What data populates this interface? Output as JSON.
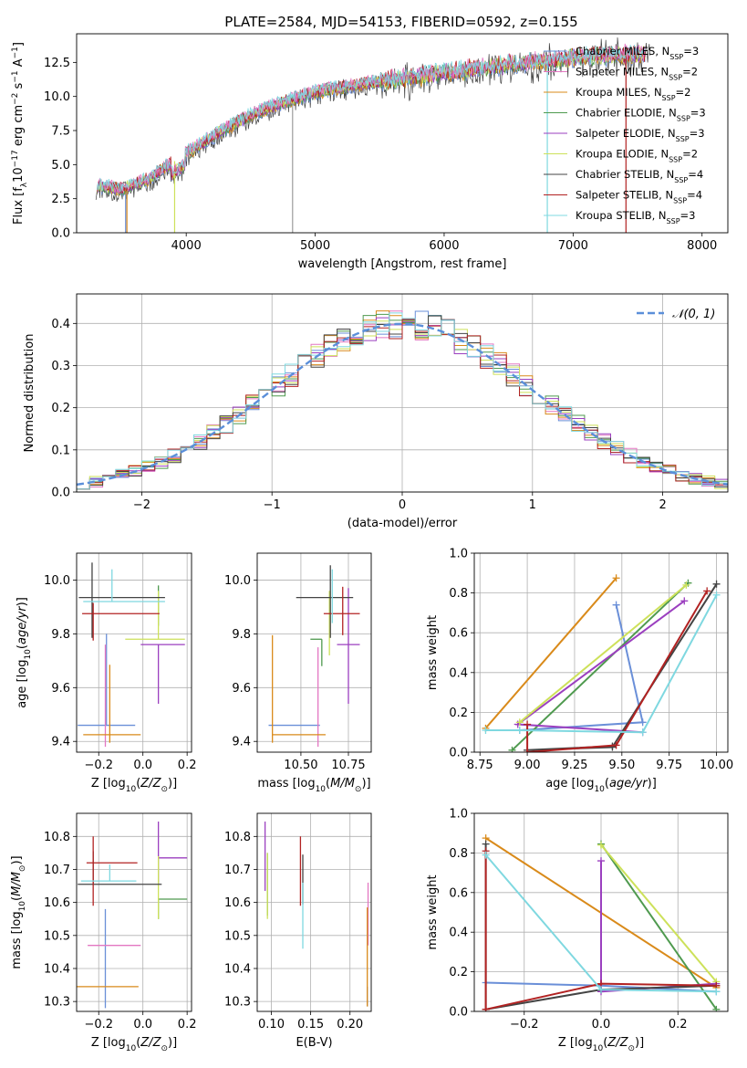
{
  "figure": {
    "title": "PLATE=2584, MJD=54153, FIBERID=0592, z=0.155"
  },
  "models": [
    {
      "name": "Chabrier MILES, N$_{SSP}$=3",
      "label": "Chabrier MILES, N",
      "nssp": "=3",
      "color": "#6a8fd8"
    },
    {
      "name": "Salpeter MILES, N$_{SSP}$=2",
      "label": "Salpeter MILES, N",
      "nssp": "=2",
      "color": "#e377c2"
    },
    {
      "name": "Kroupa MILES, N$_{SSP}$=2",
      "label": "Kroupa MILES, N",
      "nssp": "=2",
      "color": "#d98a1a"
    },
    {
      "name": "Chabrier ELODIE, N$_{SSP}$=3",
      "label": "Chabrier ELODIE, N",
      "nssp": "=3",
      "color": "#4f9a4f"
    },
    {
      "name": "Salpeter ELODIE, N$_{SSP}$=3",
      "label": "Salpeter ELODIE, N",
      "nssp": "=3",
      "color": "#9b3fbf"
    },
    {
      "name": "Kroupa ELODIE, N$_{SSP}$=2",
      "label": "Kroupa ELODIE, N",
      "nssp": "=2",
      "color": "#cde15a"
    },
    {
      "name": "Chabrier STELIB, N$_{SSP}$=4",
      "label": "Chabrier STELIB, N",
      "nssp": "=4",
      "color": "#444444"
    },
    {
      "name": "Salpeter STELIB, N$_{SSP}$=4",
      "label": "Salpeter STELIB, N",
      "nssp": "=4",
      "color": "#b22222"
    },
    {
      "name": "Kroupa STELIB, N$_{SSP}$=3",
      "label": "Kroupa STELIB, N",
      "nssp": "=3",
      "color": "#7fd8e0"
    }
  ],
  "chart_data": [
    {
      "id": "spectrum",
      "type": "line",
      "title": "PLATE=2584, MJD=54153, FIBERID=0592, z=0.155",
      "xlabel": "wavelength [Angstrom, rest frame]",
      "ylabel": "Flux [f",
      "xlim": [
        3150,
        8200
      ],
      "ylim": [
        0,
        14.6
      ],
      "xticks": [
        4000,
        5000,
        6000,
        7000,
        8000
      ],
      "yticks": [
        0.0,
        2.5,
        5.0,
        7.5,
        10.0,
        12.5
      ],
      "legend": "top-right",
      "data_range": [
        3300,
        7600
      ],
      "envelope": {
        "x": [
          3300,
          3500,
          3700,
          3900,
          4100,
          4300,
          4500,
          4700,
          4900,
          5100,
          5300,
          5500,
          5700,
          5900,
          6100,
          6300,
          6500,
          6700,
          6900,
          7100,
          7300,
          7500,
          7600
        ],
        "y": [
          3.4,
          3.2,
          3.9,
          5.2,
          6.4,
          7.6,
          8.6,
          9.4,
          10.0,
          10.5,
          10.8,
          11.1,
          11.3,
          11.6,
          11.8,
          12.1,
          12.3,
          12.5,
          12.7,
          12.9,
          13.0,
          13.1,
          13.1
        ]
      }
    },
    {
      "id": "residuals",
      "type": "histogram",
      "xlabel": "(data-model)/error",
      "ylabel": "Normed distribution",
      "xlim": [
        -2.5,
        2.5
      ],
      "ylim": [
        0,
        0.47
      ],
      "xticks": [
        -2,
        -1,
        0,
        1,
        2
      ],
      "yticks": [
        0.0,
        0.1,
        0.2,
        0.3,
        0.4
      ],
      "grid": true,
      "legend": "top-right",
      "reference": {
        "name": "𝒩(0, 1)",
        "mean": 0,
        "sigma": 1,
        "color": "#5b8fd9"
      },
      "bins": {
        "start": -2.5,
        "width": 0.1,
        "count": 50
      }
    },
    {
      "id": "age_vs_Z",
      "type": "errorbar",
      "xlabel": "Z [log",
      "ylabel": "age  [log",
      "xlim": [
        -0.3,
        0.22
      ],
      "ylim": [
        9.36,
        10.1
      ],
      "xticks": [
        -0.2,
        0.0,
        0.2
      ],
      "yticks": [
        9.4,
        9.6,
        9.8,
        10.0
      ],
      "grid": true,
      "points": [
        {
          "m": 0,
          "x": -0.165,
          "y": 9.46,
          "xerr": [
            0.13,
            0.13
          ],
          "yerr": [
            0.0,
            0.34
          ]
        },
        {
          "m": 1,
          "x": -0.17,
          "y": 9.43,
          "xerr": [
            0.0,
            0.0
          ],
          "yerr": [
            0.05,
            0.33
          ]
        },
        {
          "m": 2,
          "x": -0.15,
          "y": 9.425,
          "xerr": [
            0.12,
            0.14
          ],
          "yerr": [
            0.03,
            0.26
          ]
        },
        {
          "m": 3,
          "x": 0.07,
          "y": 9.98,
          "xerr": [
            0.0,
            0.0
          ],
          "yerr": [
            0.15,
            0.0
          ]
        },
        {
          "m": 4,
          "x": 0.07,
          "y": 9.76,
          "xerr": [
            0.08,
            0.12
          ],
          "yerr": [
            0.22,
            0.0
          ]
        },
        {
          "m": 5,
          "x": 0.07,
          "y": 9.78,
          "xerr": [
            0.15,
            0.12
          ],
          "yerr": [
            0.0,
            0.18
          ]
        },
        {
          "m": 6,
          "x": -0.23,
          "y": 9.935,
          "xerr": [
            0.06,
            0.33
          ],
          "yerr": [
            0.15,
            0.13
          ]
        },
        {
          "m": 7,
          "x": -0.225,
          "y": 9.875,
          "xerr": [
            0.05,
            0.3
          ],
          "yerr": [
            0.1,
            0.04
          ]
        },
        {
          "m": 8,
          "x": -0.14,
          "y": 9.92,
          "xerr": [
            0.13,
            0.24
          ],
          "yerr": [
            0.0,
            0.12
          ]
        }
      ]
    },
    {
      "id": "age_vs_mass",
      "type": "errorbar",
      "xlabel": "mass [log",
      "ylabel": "",
      "xlim": [
        10.27,
        10.87
      ],
      "ylim": [
        9.36,
        10.1
      ],
      "xticks": [
        10.5,
        10.75
      ],
      "yticks": [
        9.4,
        9.6,
        9.8,
        10.0
      ],
      "grid": true,
      "points": [
        {
          "m": 0,
          "x": 10.46,
          "y": 9.46,
          "xerr": [
            0.13,
            0.14
          ],
          "yerr": [
            0.0,
            0.0
          ]
        },
        {
          "m": 1,
          "x": 10.59,
          "y": 9.43,
          "xerr": [
            0.0,
            0.0
          ],
          "yerr": [
            0.05,
            0.32
          ]
        },
        {
          "m": 2,
          "x": 10.35,
          "y": 9.425,
          "xerr": [
            0.0,
            0.28
          ],
          "yerr": [
            0.03,
            0.37
          ]
        },
        {
          "m": 3,
          "x": 10.61,
          "y": 9.78,
          "xerr": [
            0.06,
            0.0
          ],
          "yerr": [
            0.1,
            0.0
          ]
        },
        {
          "m": 4,
          "x": 10.75,
          "y": 9.76,
          "xerr": [
            0.06,
            0.06
          ],
          "yerr": [
            0.22,
            0.21
          ]
        },
        {
          "m": 5,
          "x": 10.65,
          "y": 9.78,
          "xerr": [
            0.0,
            0.0
          ],
          "yerr": [
            0.06,
            0.18
          ]
        },
        {
          "m": 6,
          "x": 10.655,
          "y": 9.935,
          "xerr": [
            0.18,
            0.12
          ],
          "yerr": [
            0.15,
            0.12
          ]
        },
        {
          "m": 7,
          "x": 10.72,
          "y": 9.875,
          "xerr": [
            0.1,
            0.09
          ],
          "yerr": [
            0.08,
            0.1
          ]
        },
        {
          "m": 8,
          "x": 10.665,
          "y": 9.92,
          "xerr": [
            0.0,
            0.0
          ],
          "yerr": [
            0.08,
            0.12
          ]
        }
      ]
    },
    {
      "id": "weight_vs_age",
      "type": "line",
      "xlabel": "age  [log",
      "ylabel": "mass weight",
      "xlim": [
        8.72,
        10.06
      ],
      "ylim": [
        0,
        1.0
      ],
      "xticks": [
        8.75,
        9.0,
        9.25,
        9.5,
        9.75,
        10.0
      ],
      "yticks": [
        0.0,
        0.2,
        0.4,
        0.6,
        0.8,
        1.0
      ],
      "grid": true,
      "series": [
        {
          "m": 0,
          "x": [
            9.47,
            9.61,
            8.96
          ],
          "y": [
            0.74,
            0.15,
            0.11
          ]
        },
        {
          "m": 2,
          "x": [
            9.47,
            8.78
          ],
          "y": [
            0.875,
            0.12
          ]
        },
        {
          "m": 3,
          "x": [
            9.85,
            8.92
          ],
          "y": [
            0.85,
            0.01
          ]
        },
        {
          "m": 4,
          "x": [
            9.61,
            8.95,
            9.83
          ],
          "y": [
            0.1,
            0.14,
            0.76
          ]
        },
        {
          "m": 5,
          "x": [
            9.84,
            8.96
          ],
          "y": [
            0.84,
            0.15
          ]
        },
        {
          "m": 6,
          "x": [
            10.0,
            9.45,
            9.0,
            9.45
          ],
          "y": [
            0.845,
            0.025,
            0.01,
            0.03
          ]
        },
        {
          "m": 7,
          "x": [
            9.95,
            9.47,
            9.0,
            9.0
          ],
          "y": [
            0.81,
            0.035,
            0.0,
            0.14
          ]
        },
        {
          "m": 8,
          "x": [
            10.0,
            9.61,
            8.96,
            8.78
          ],
          "y": [
            0.79,
            0.1,
            0.11,
            0.11
          ]
        }
      ]
    },
    {
      "id": "mass_vs_Z",
      "type": "errorbar",
      "xlabel": "Z [log",
      "ylabel": "mass [log",
      "xlim": [
        -0.3,
        0.22
      ],
      "ylim": [
        10.27,
        10.87
      ],
      "xticks": [
        -0.2,
        0.0,
        0.2
      ],
      "yticks": [
        10.3,
        10.4,
        10.5,
        10.6,
        10.7,
        10.8
      ],
      "grid": true,
      "points": [
        {
          "m": 0,
          "x": -0.17,
          "y": 10.34,
          "xerr": [
            0.0,
            0.0
          ],
          "yerr": [
            0.06,
            0.24
          ]
        },
        {
          "m": 1,
          "x": -0.17,
          "y": 10.47,
          "xerr": [
            0.08,
            0.16
          ],
          "yerr": [
            0.0,
            0.0
          ]
        },
        {
          "m": 2,
          "x": -0.15,
          "y": 10.345,
          "xerr": [
            0.15,
            0.13
          ],
          "yerr": [
            0.0,
            0.0
          ]
        },
        {
          "m": 3,
          "x": 0.07,
          "y": 10.61,
          "xerr": [
            0.0,
            0.13
          ],
          "yerr": [
            0.06,
            0.0
          ]
        },
        {
          "m": 4,
          "x": 0.07,
          "y": 10.735,
          "xerr": [
            0.0,
            0.13
          ],
          "yerr": [
            0.08,
            0.11
          ]
        },
        {
          "m": 5,
          "x": 0.07,
          "y": 10.61,
          "xerr": [
            0.0,
            0.0
          ],
          "yerr": [
            0.06,
            0.13
          ]
        },
        {
          "m": 6,
          "x": -0.225,
          "y": 10.655,
          "xerr": [
            0.07,
            0.31
          ],
          "yerr": [
            0.0,
            0.1
          ]
        },
        {
          "m": 7,
          "x": -0.225,
          "y": 10.72,
          "xerr": [
            0.03,
            0.2
          ],
          "yerr": [
            0.13,
            0.08
          ]
        },
        {
          "m": 8,
          "x": -0.15,
          "y": 10.665,
          "xerr": [
            0.13,
            0.12
          ],
          "yerr": [
            0.0,
            0.05
          ]
        }
      ]
    },
    {
      "id": "mass_vs_ebv",
      "type": "errorbar",
      "xlabel": "E(B-V)",
      "ylabel": "",
      "xlim": [
        0.082,
        0.227
      ],
      "ylim": [
        10.27,
        10.87
      ],
      "xticks": [
        0.1,
        0.15,
        0.2
      ],
      "yticks": [
        10.3,
        10.4,
        10.5,
        10.6,
        10.7,
        10.8
      ],
      "grid": true,
      "points": [
        {
          "m": 0,
          "x": 0.222,
          "y": 10.345,
          "xerr": [
            0.0,
            0.0
          ],
          "yerr": [
            0.06,
            0.0
          ]
        },
        {
          "m": 1,
          "x": 0.223,
          "y": 10.47,
          "xerr": [
            0.0,
            0.0
          ],
          "yerr": [
            0.0,
            0.19
          ]
        },
        {
          "m": 2,
          "x": 0.222,
          "y": 10.345,
          "xerr": [
            0.0,
            0.0
          ],
          "yerr": [
            0.06,
            0.24
          ]
        },
        {
          "m": 3,
          "x": 0.095,
          "y": 10.61,
          "xerr": [
            0.0,
            0.0
          ],
          "yerr": [
            0.05,
            0.14
          ]
        },
        {
          "m": 4,
          "x": 0.092,
          "y": 10.735,
          "xerr": [
            0.0,
            0.0
          ],
          "yerr": [
            0.1,
            0.11
          ]
        },
        {
          "m": 5,
          "x": 0.095,
          "y": 10.61,
          "xerr": [
            0.0,
            0.0
          ],
          "yerr": [
            0.06,
            0.14
          ]
        },
        {
          "m": 6,
          "x": 0.14,
          "y": 10.655,
          "xerr": [
            0.0,
            0.0
          ],
          "yerr": [
            0.06,
            0.09
          ]
        },
        {
          "m": 7,
          "x": 0.137,
          "y": 10.72,
          "xerr": [
            0.0,
            0.0
          ],
          "yerr": [
            0.13,
            0.08
          ]
        },
        {
          "m": 8,
          "x": 0.14,
          "y": 10.6,
          "xerr": [
            0.0,
            0.0
          ],
          "yerr": [
            0.14,
            0.06
          ]
        }
      ]
    },
    {
      "id": "weight_vs_Z",
      "type": "line",
      "xlabel": "Z [log",
      "ylabel": "mass weight",
      "xlim": [
        -0.33,
        0.33
      ],
      "ylim": [
        0,
        1.0
      ],
      "xticks": [
        -0.2,
        0.0,
        0.2
      ],
      "yticks": [
        0.0,
        0.2,
        0.4,
        0.6,
        0.8,
        1.0
      ],
      "grid": true,
      "series": [
        {
          "m": 0,
          "x": [
            -0.3,
            0.0,
            0.3
          ],
          "y": [
            0.145,
            0.13,
            0.1
          ]
        },
        {
          "m": 2,
          "x": [
            -0.3,
            0.3
          ],
          "y": [
            0.875,
            0.12
          ]
        },
        {
          "m": 3,
          "x": [
            0.0,
            0.3
          ],
          "y": [
            0.845,
            0.01
          ]
        },
        {
          "m": 4,
          "x": [
            0.0,
            0.0,
            0.3
          ],
          "y": [
            0.76,
            0.1,
            0.14
          ]
        },
        {
          "m": 5,
          "x": [
            0.0,
            0.3
          ],
          "y": [
            0.84,
            0.15
          ]
        },
        {
          "m": 6,
          "x": [
            -0.3,
            -0.3,
            0.0,
            0.3
          ],
          "y": [
            0.845,
            0.01,
            0.11,
            0.13
          ]
        },
        {
          "m": 7,
          "x": [
            -0.3,
            -0.3,
            0.0,
            0.3
          ],
          "y": [
            0.81,
            0.01,
            0.14,
            0.13
          ]
        },
        {
          "m": 8,
          "x": [
            -0.3,
            0.0,
            0.3
          ],
          "y": [
            0.79,
            0.11,
            0.1
          ]
        }
      ]
    }
  ]
}
